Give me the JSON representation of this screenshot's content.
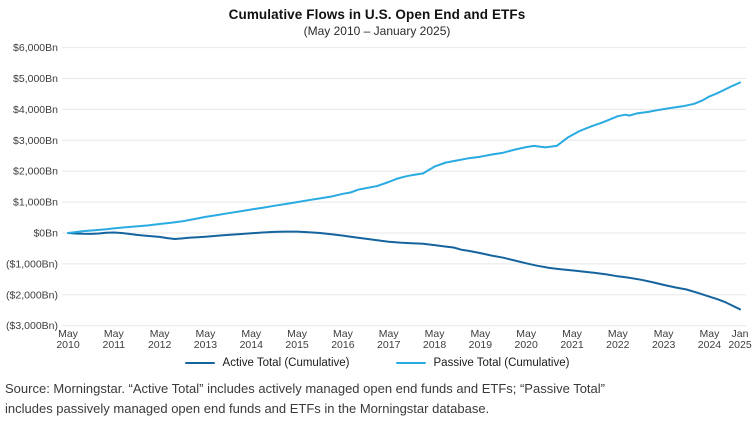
{
  "page": {
    "title": "Cumulative Flows in U.S. Open End and ETFs",
    "subtitle": "(May 2010 – January 2025)",
    "source_note_line1": "Source: Morningstar. “Active Total” includes actively managed open end funds and ETFs; “Passive Total”",
    "source_note_line2": "includes passively managed open end funds and ETFs in the Morningstar database."
  },
  "chart_data": {
    "type": "line",
    "title": "Cumulative Flows in U.S. Open End and ETFs",
    "subtitle": "(May 2010 – January 2025)",
    "grid": true,
    "legend_position": "bottom",
    "x_axis": {
      "unit": "months since May 2010",
      "range_months": [
        0,
        176
      ],
      "ticks": [
        {
          "t": 0,
          "line1": "May",
          "line2": "2010"
        },
        {
          "t": 12,
          "line1": "May",
          "line2": "2011"
        },
        {
          "t": 24,
          "line1": "May",
          "line2": "2012"
        },
        {
          "t": 36,
          "line1": "May",
          "line2": "2013"
        },
        {
          "t": 48,
          "line1": "May",
          "line2": "2014"
        },
        {
          "t": 60,
          "line1": "May",
          "line2": "2015"
        },
        {
          "t": 72,
          "line1": "May",
          "line2": "2016"
        },
        {
          "t": 84,
          "line1": "May",
          "line2": "2017"
        },
        {
          "t": 96,
          "line1": "May",
          "line2": "2018"
        },
        {
          "t": 108,
          "line1": "May",
          "line2": "2019"
        },
        {
          "t": 120,
          "line1": "May",
          "line2": "2020"
        },
        {
          "t": 132,
          "line1": "May",
          "line2": "2021"
        },
        {
          "t": 144,
          "line1": "May",
          "line2": "2022"
        },
        {
          "t": 156,
          "line1": "May",
          "line2": "2023"
        },
        {
          "t": 168,
          "line1": "May",
          "line2": "2024"
        },
        {
          "t": 176,
          "line1": "Jan",
          "line2": "2025"
        }
      ]
    },
    "y_axis": {
      "unit": "$Bn",
      "ylim": [
        -3000,
        6000
      ],
      "ticks": [
        {
          "v": 6000,
          "label": "$6,000Bn"
        },
        {
          "v": 5000,
          "label": "$5,000Bn"
        },
        {
          "v": 4000,
          "label": "$4,000Bn"
        },
        {
          "v": 3000,
          "label": "$3,000Bn"
        },
        {
          "v": 2000,
          "label": "$2,000Bn"
        },
        {
          "v": 1000,
          "label": "$1,000Bn"
        },
        {
          "v": 0,
          "label": "$0Bn"
        },
        {
          "v": -1000,
          "label": "($1,000Bn)"
        },
        {
          "v": -2000,
          "label": "($2,000Bn)"
        },
        {
          "v": -3000,
          "label": "($3,000Bn)"
        }
      ]
    },
    "series": [
      {
        "name": "Active Total (Cumulative)",
        "color": "#15649E",
        "points": [
          [
            0,
            0
          ],
          [
            2,
            -15
          ],
          [
            4,
            -25
          ],
          [
            6,
            -30
          ],
          [
            8,
            -15
          ],
          [
            10,
            5
          ],
          [
            12,
            15
          ],
          [
            14,
            0
          ],
          [
            16,
            -30
          ],
          [
            18,
            -60
          ],
          [
            20,
            -85
          ],
          [
            22,
            -105
          ],
          [
            24,
            -125
          ],
          [
            26,
            -165
          ],
          [
            28,
            -195
          ],
          [
            30,
            -175
          ],
          [
            32,
            -150
          ],
          [
            34,
            -135
          ],
          [
            36,
            -120
          ],
          [
            39,
            -90
          ],
          [
            42,
            -60
          ],
          [
            45,
            -35
          ],
          [
            48,
            -10
          ],
          [
            51,
            15
          ],
          [
            54,
            35
          ],
          [
            57,
            45
          ],
          [
            60,
            45
          ],
          [
            63,
            25
          ],
          [
            66,
            0
          ],
          [
            69,
            -40
          ],
          [
            72,
            -85
          ],
          [
            75,
            -135
          ],
          [
            78,
            -185
          ],
          [
            81,
            -235
          ],
          [
            84,
            -280
          ],
          [
            87,
            -310
          ],
          [
            90,
            -330
          ],
          [
            93,
            -350
          ],
          [
            96,
            -390
          ],
          [
            99,
            -440
          ],
          [
            101,
            -470
          ],
          [
            103,
            -540
          ],
          [
            105,
            -580
          ],
          [
            108,
            -650
          ],
          [
            111,
            -730
          ],
          [
            114,
            -800
          ],
          [
            117,
            -890
          ],
          [
            120,
            -980
          ],
          [
            123,
            -1060
          ],
          [
            126,
            -1130
          ],
          [
            129,
            -1170
          ],
          [
            132,
            -1210
          ],
          [
            135,
            -1250
          ],
          [
            138,
            -1290
          ],
          [
            141,
            -1340
          ],
          [
            144,
            -1400
          ],
          [
            147,
            -1450
          ],
          [
            150,
            -1510
          ],
          [
            153,
            -1590
          ],
          [
            156,
            -1680
          ],
          [
            159,
            -1760
          ],
          [
            162,
            -1830
          ],
          [
            165,
            -1940
          ],
          [
            168,
            -2060
          ],
          [
            170,
            -2140
          ],
          [
            172,
            -2230
          ],
          [
            174,
            -2350
          ],
          [
            176,
            -2470
          ]
        ]
      },
      {
        "name": "Passive Total (Cumulative)",
        "color": "#29ABE2",
        "points": [
          [
            0,
            0
          ],
          [
            2,
            30
          ],
          [
            4,
            60
          ],
          [
            7,
            90
          ],
          [
            10,
            120
          ],
          [
            12,
            150
          ],
          [
            15,
            185
          ],
          [
            18,
            215
          ],
          [
            21,
            245
          ],
          [
            24,
            290
          ],
          [
            27,
            330
          ],
          [
            30,
            380
          ],
          [
            33,
            450
          ],
          [
            36,
            520
          ],
          [
            39,
            580
          ],
          [
            42,
            640
          ],
          [
            45,
            700
          ],
          [
            48,
            760
          ],
          [
            51,
            820
          ],
          [
            54,
            880
          ],
          [
            57,
            940
          ],
          [
            60,
            1000
          ],
          [
            63,
            1060
          ],
          [
            66,
            1120
          ],
          [
            69,
            1180
          ],
          [
            72,
            1270
          ],
          [
            74,
            1310
          ],
          [
            76,
            1400
          ],
          [
            78,
            1450
          ],
          [
            81,
            1520
          ],
          [
            84,
            1650
          ],
          [
            86,
            1750
          ],
          [
            88,
            1820
          ],
          [
            90,
            1870
          ],
          [
            93,
            1930
          ],
          [
            96,
            2150
          ],
          [
            99,
            2280
          ],
          [
            102,
            2350
          ],
          [
            105,
            2420
          ],
          [
            108,
            2470
          ],
          [
            111,
            2540
          ],
          [
            114,
            2600
          ],
          [
            117,
            2700
          ],
          [
            120,
            2780
          ],
          [
            122,
            2820
          ],
          [
            125,
            2770
          ],
          [
            128,
            2820
          ],
          [
            131,
            3100
          ],
          [
            134,
            3300
          ],
          [
            137,
            3450
          ],
          [
            140,
            3580
          ],
          [
            142,
            3680
          ],
          [
            144,
            3780
          ],
          [
            146,
            3830
          ],
          [
            147,
            3800
          ],
          [
            149,
            3870
          ],
          [
            152,
            3920
          ],
          [
            155,
            3990
          ],
          [
            158,
            4050
          ],
          [
            161,
            4100
          ],
          [
            164,
            4180
          ],
          [
            166,
            4280
          ],
          [
            168,
            4420
          ],
          [
            170,
            4520
          ],
          [
            172,
            4640
          ],
          [
            174,
            4760
          ],
          [
            176,
            4870
          ]
        ]
      }
    ]
  }
}
